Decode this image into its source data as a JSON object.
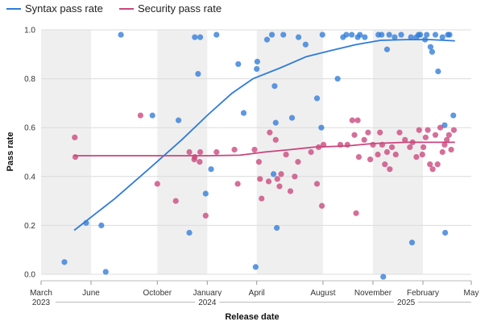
{
  "chart_data": {
    "type": "scatter",
    "title": "",
    "xlabel": "Release date",
    "ylabel": "Pass rate",
    "ylim": [
      0,
      1.0
    ],
    "xlim": [
      "2023-03-01",
      "2025-05-01"
    ],
    "yticks": [
      "0.0",
      "0.2",
      "0.4",
      "0.6",
      "0.8",
      "1.0"
    ],
    "xticks": [
      {
        "date": "2023-03-01",
        "label": "March"
      },
      {
        "date": "2023-06-01",
        "label": "June"
      },
      {
        "date": "2023-10-01",
        "label": "October"
      },
      {
        "date": "2024-01-01",
        "label": "January"
      },
      {
        "date": "2024-04-01",
        "label": "April"
      },
      {
        "date": "2024-08-01",
        "label": "August"
      },
      {
        "date": "2024-11-01",
        "label": "November"
      },
      {
        "date": "2025-02-01",
        "label": "February"
      },
      {
        "date": "2025-05-01",
        "label": "May"
      }
    ],
    "years": [
      {
        "date": "2023-03-01",
        "label": "2023"
      },
      {
        "date": "2024-01-01",
        "label": "2024"
      },
      {
        "date": "2025-01-01",
        "label": "2025"
      }
    ],
    "shaded_bands": [
      [
        "2023-03-01",
        "2023-06-01"
      ],
      [
        "2023-10-01",
        "2024-01-01"
      ],
      [
        "2024-04-01",
        "2024-08-01"
      ],
      [
        "2024-11-01",
        "2025-02-01"
      ]
    ],
    "legend_position": "top-left",
    "series": [
      {
        "name": "Syntax pass rate",
        "color": "#2f7bd9",
        "trend": [
          [
            "2023-05-01",
            0.18
          ],
          [
            "2023-07-15",
            0.31
          ],
          [
            "2023-09-15",
            0.43
          ],
          [
            "2023-11-15",
            0.55
          ],
          [
            "2024-01-01",
            0.65
          ],
          [
            "2024-02-15",
            0.74
          ],
          [
            "2024-03-25",
            0.8
          ],
          [
            "2024-05-15",
            0.845
          ],
          [
            "2024-07-01",
            0.89
          ],
          [
            "2024-08-15",
            0.915
          ],
          [
            "2024-10-01",
            0.94
          ],
          [
            "2024-11-15",
            0.957
          ],
          [
            "2025-01-01",
            0.96
          ],
          [
            "2025-02-15",
            0.96
          ],
          [
            "2025-04-01",
            0.955
          ]
        ],
        "points": [
          [
            "2023-04-13",
            0.05
          ],
          [
            "2023-05-23",
            0.21
          ],
          [
            "2023-06-20",
            0.2
          ],
          [
            "2023-06-28",
            0.01
          ],
          [
            "2023-07-26",
            0.98
          ],
          [
            "2023-09-22",
            0.65
          ],
          [
            "2023-11-09",
            0.63
          ],
          [
            "2023-11-29",
            0.17
          ],
          [
            "2023-12-09",
            0.97
          ],
          [
            "2023-12-15",
            0.82
          ],
          [
            "2023-12-19",
            0.97
          ],
          [
            "2023-12-29",
            0.33
          ],
          [
            "2024-01-08",
            0.43
          ],
          [
            "2024-01-18",
            0.98
          ],
          [
            "2024-02-27",
            0.86
          ],
          [
            "2024-03-08",
            0.66
          ],
          [
            "2024-03-30",
            0.03
          ],
          [
            "2024-04-01",
            0.84
          ],
          [
            "2024-04-02",
            0.87
          ],
          [
            "2024-04-20",
            0.96
          ],
          [
            "2024-04-29",
            0.98
          ],
          [
            "2024-05-02",
            0.41
          ],
          [
            "2024-05-04",
            0.77
          ],
          [
            "2024-05-06",
            0.62
          ],
          [
            "2024-05-08",
            0.19
          ],
          [
            "2024-05-20",
            0.98
          ],
          [
            "2024-06-05",
            0.64
          ],
          [
            "2024-06-17",
            0.97
          ],
          [
            "2024-06-30",
            0.94
          ],
          [
            "2024-07-21",
            0.72
          ],
          [
            "2024-07-29",
            0.6
          ],
          [
            "2024-07-31",
            0.98
          ],
          [
            "2024-08-28",
            0.8
          ],
          [
            "2024-09-07",
            0.97
          ],
          [
            "2024-09-13",
            0.98
          ],
          [
            "2024-09-23",
            0.98
          ],
          [
            "2024-10-04",
            0.97
          ],
          [
            "2024-10-08",
            0.98
          ],
          [
            "2024-10-17",
            0.97
          ],
          [
            "2024-11-11",
            0.98
          ],
          [
            "2024-11-17",
            0.98
          ],
          [
            "2024-11-27",
            0.92
          ],
          [
            "2024-12-01",
            0.98
          ],
          [
            "2024-12-11",
            0.97
          ],
          [
            "2024-12-23",
            0.98
          ],
          [
            "2025-01-10",
            0.97
          ],
          [
            "2025-01-20",
            0.97
          ],
          [
            "2025-01-24",
            0.98
          ],
          [
            "2025-01-27",
            0.98
          ],
          [
            "2025-02-05",
            0.96
          ],
          [
            "2025-02-08",
            0.98
          ],
          [
            "2025-02-15",
            0.93
          ],
          [
            "2025-02-18",
            0.91
          ],
          [
            "2025-02-24",
            0.98
          ],
          [
            "2025-03-01",
            0.83
          ],
          [
            "2025-03-09",
            0.97
          ],
          [
            "2025-03-13",
            0.61
          ],
          [
            "2025-03-19",
            0.98
          ],
          [
            "2025-03-22",
            0.98
          ],
          [
            "2025-03-29",
            0.65
          ],
          [
            "2025-01-12",
            0.13
          ],
          [
            "2025-03-14",
            0.17
          ],
          [
            "2024-11-20",
            -0.01
          ]
        ]
      },
      {
        "name": "Security pass rate",
        "color": "#c9467c",
        "trend": [
          [
            "2023-05-01",
            0.485
          ],
          [
            "2023-10-01",
            0.485
          ],
          [
            "2024-01-01",
            0.485
          ],
          [
            "2024-03-01",
            0.487
          ],
          [
            "2024-04-15",
            0.5
          ],
          [
            "2024-06-01",
            0.51
          ],
          [
            "2024-07-15",
            0.52
          ],
          [
            "2024-09-15",
            0.525
          ],
          [
            "2024-11-01",
            0.535
          ],
          [
            "2025-01-01",
            0.54
          ],
          [
            "2025-04-01",
            0.54
          ]
        ],
        "points": [
          [
            "2023-05-02",
            0.56
          ],
          [
            "2023-05-03",
            0.48
          ],
          [
            "2023-08-31",
            0.65
          ],
          [
            "2023-10-01",
            0.37
          ],
          [
            "2023-11-04",
            0.3
          ],
          [
            "2023-11-29",
            0.5
          ],
          [
            "2023-12-08",
            0.47
          ],
          [
            "2023-12-09",
            0.48
          ],
          [
            "2023-12-18",
            0.46
          ],
          [
            "2023-12-19",
            0.5
          ],
          [
            "2023-12-29",
            0.24
          ],
          [
            "2024-01-18",
            0.5
          ],
          [
            "2024-02-20",
            0.51
          ],
          [
            "2024-02-26",
            0.37
          ],
          [
            "2024-03-28",
            0.51
          ],
          [
            "2024-04-05",
            0.46
          ],
          [
            "2024-04-07",
            0.39
          ],
          [
            "2024-04-10",
            0.31
          ],
          [
            "2024-04-23",
            0.38
          ],
          [
            "2024-04-25",
            0.58
          ],
          [
            "2024-05-06",
            0.55
          ],
          [
            "2024-05-09",
            0.39
          ],
          [
            "2024-05-13",
            0.36
          ],
          [
            "2024-05-16",
            0.41
          ],
          [
            "2024-05-25",
            0.49
          ],
          [
            "2024-06-02",
            0.34
          ],
          [
            "2024-06-10",
            0.4
          ],
          [
            "2024-06-16",
            0.46
          ],
          [
            "2024-07-10",
            0.5
          ],
          [
            "2024-07-21",
            0.37
          ],
          [
            "2024-07-24",
            0.52
          ],
          [
            "2024-07-30",
            0.28
          ],
          [
            "2024-08-02",
            0.53
          ],
          [
            "2024-09-02",
            0.53
          ],
          [
            "2024-09-15",
            0.53
          ],
          [
            "2024-09-24",
            0.63
          ],
          [
            "2024-09-28",
            0.57
          ],
          [
            "2024-10-01",
            0.25
          ],
          [
            "2024-10-04",
            0.63
          ],
          [
            "2024-10-06",
            0.48
          ],
          [
            "2024-10-16",
            0.55
          ],
          [
            "2024-10-23",
            0.58
          ],
          [
            "2024-10-27",
            0.47
          ],
          [
            "2024-11-01",
            0.53
          ],
          [
            "2024-11-10",
            0.49
          ],
          [
            "2024-11-14",
            0.58
          ],
          [
            "2024-11-18",
            0.53
          ],
          [
            "2024-11-23",
            0.45
          ],
          [
            "2024-11-27",
            0.5
          ],
          [
            "2024-12-02",
            0.43
          ],
          [
            "2024-12-06",
            0.52
          ],
          [
            "2024-12-13",
            0.49
          ],
          [
            "2024-12-20",
            0.58
          ],
          [
            "2024-12-30",
            0.55
          ],
          [
            "2025-01-08",
            0.52
          ],
          [
            "2025-01-13",
            0.54
          ],
          [
            "2025-01-20",
            0.48
          ],
          [
            "2025-01-25",
            0.59
          ],
          [
            "2025-01-31",
            0.49
          ],
          [
            "2025-02-02",
            0.52
          ],
          [
            "2025-02-06",
            0.56
          ],
          [
            "2025-02-10",
            0.59
          ],
          [
            "2025-02-14",
            0.45
          ],
          [
            "2025-02-19",
            0.43
          ],
          [
            "2025-02-24",
            0.57
          ],
          [
            "2025-02-28",
            0.45
          ],
          [
            "2025-03-05",
            0.6
          ],
          [
            "2025-03-09",
            0.5
          ],
          [
            "2025-03-13",
            0.53
          ],
          [
            "2025-03-17",
            0.55
          ],
          [
            "2025-03-21",
            0.57
          ],
          [
            "2025-03-25",
            0.51
          ],
          [
            "2025-03-30",
            0.59
          ]
        ]
      }
    ]
  }
}
